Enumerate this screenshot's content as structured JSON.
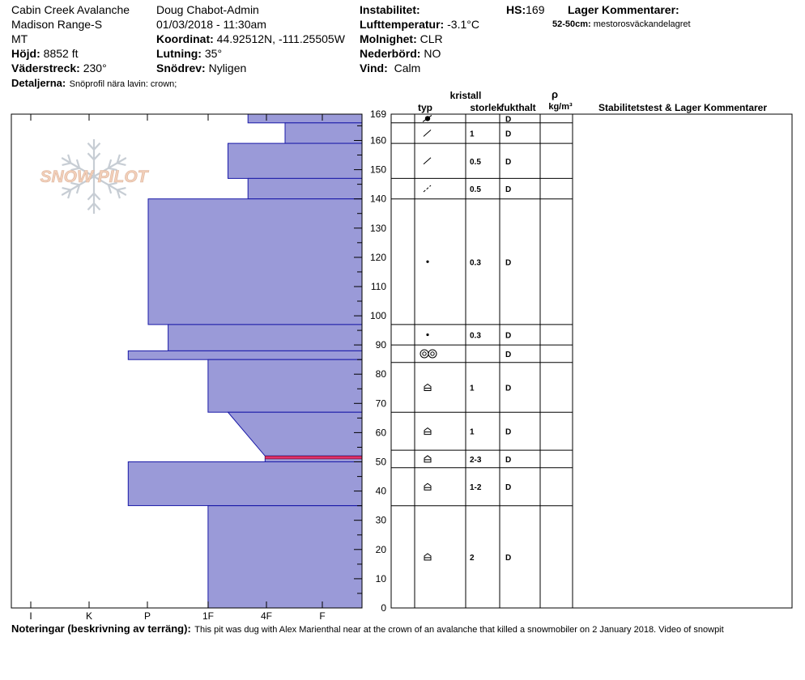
{
  "header": {
    "location": "Cabin Creek Avalanche",
    "range": "Madison Range-S",
    "state": "MT",
    "elevation_label": "Höjd:",
    "elevation_value": "8852 ft",
    "aspect_label": "Väderstreck:",
    "aspect_value": "230°",
    "details_label": "Detaljerna:",
    "details_value": "Snöprofil nära lavin: crown;",
    "observer": "Doug Chabot-Admin",
    "datetime": "01/03/2018 - 11:30am",
    "coord_label": "Koordinat:",
    "coord_value": "44.92512N, -111.25505W",
    "slope_label": "Lutning:",
    "slope_value": "35°",
    "drift_label": "Snödrev:",
    "drift_value": "Nyligen",
    "instability_label": "Instabilitet:",
    "airtemp_label": "Lufttemperatur:",
    "airtemp_value": "-3.1°C",
    "sky_label": "Molnighet:",
    "sky_value": "CLR",
    "precip_label": "Nederbörd:",
    "precip_value": "NO",
    "wind_label": "Vind:",
    "wind_value": "Calm",
    "hs_label": "HS:",
    "hs_value": "169",
    "layer_comments_label": "Lager Kommentarer:",
    "layer_comment_range": "52-50cm:",
    "layer_comment_text": "mestorosväckandelagret"
  },
  "watermark": "SNOW PILOT",
  "table_headers": {
    "crystal": "kristall",
    "type": "typ",
    "size": "storlek",
    "moisture": "fukthalt",
    "rho": "ρ",
    "density_unit": "kg/m³",
    "stability": "Stabilitetstest & Lager Kommentarer"
  },
  "notes_label": "Noteringar (beskrivning av terräng):",
  "notes_text": "This pit was dug with Alex Marienthal near at the crown of an avalanche that killed a snowmobiler on 2 January 2018. Video of snowpit",
  "chart_data": {
    "type": "bar",
    "title": "",
    "x_axis": {
      "tick_labels": [
        "I",
        "K",
        "P",
        "1F",
        "4F",
        "F"
      ],
      "scale_max": 6
    },
    "y_axis": {
      "range": [
        0,
        169
      ],
      "ticks": [
        0,
        10,
        20,
        30,
        40,
        50,
        60,
        70,
        80,
        90,
        100,
        110,
        120,
        130,
        140,
        150,
        160,
        169
      ]
    },
    "hardness_profile": [
      {
        "top": 169,
        "bottom": 166,
        "hardness": 2.0
      },
      {
        "top": 166,
        "bottom": 159,
        "hardness": 1.35
      },
      {
        "top": 159,
        "bottom": 147,
        "hardness": 2.35
      },
      {
        "top": 147,
        "bottom": 140,
        "hardness": 2.0
      },
      {
        "top": 140,
        "bottom": 97,
        "hardness": 3.75
      },
      {
        "top": 97,
        "bottom": 88,
        "hardness": 3.4
      },
      {
        "top": 88,
        "bottom": 85,
        "hardness": 4.1
      },
      {
        "top": 85,
        "bottom": 67,
        "hardness": 2.7
      },
      {
        "top": 67,
        "bottom": 52,
        "hardness_top": 2.35,
        "hardness_bottom": 1.7
      },
      {
        "top": 52,
        "bottom": 50,
        "hardness": 1.7
      },
      {
        "top": 50,
        "bottom": 35,
        "hardness": 4.1
      },
      {
        "top": 35,
        "bottom": 0,
        "hardness": 2.7
      }
    ],
    "highlight_layer": {
      "top": 52,
      "bottom": 51,
      "color": "#e0306a"
    },
    "layers": [
      {
        "top": 169,
        "bottom": 166,
        "grain": "rounding-faceted",
        "size": "",
        "moisture": "D"
      },
      {
        "top": 166,
        "bottom": 159,
        "grain": "precipitation-particles",
        "size": "1",
        "moisture": "D"
      },
      {
        "top": 159,
        "bottom": 147,
        "grain": "precipitation-particles",
        "size": "0.5",
        "moisture": "D"
      },
      {
        "top": 147,
        "bottom": 140,
        "grain": "decomposing-fragments",
        "size": "0.5",
        "moisture": "D"
      },
      {
        "top": 140,
        "bottom": 97,
        "grain": "rounded-grains",
        "size": "0.3",
        "moisture": "D"
      },
      {
        "top": 97,
        "bottom": 90,
        "grain": "rounded-grains",
        "size": "0.3",
        "moisture": "D"
      },
      {
        "top": 90,
        "bottom": 84,
        "grain": "melt-forms",
        "size": "",
        "moisture": "D"
      },
      {
        "top": 84,
        "bottom": 67,
        "grain": "depth-hoar",
        "size": "1",
        "moisture": "D"
      },
      {
        "top": 67,
        "bottom": 54,
        "grain": "depth-hoar",
        "size": "1",
        "moisture": "D"
      },
      {
        "top": 54,
        "bottom": 48,
        "grain": "depth-hoar",
        "size": "2-3",
        "moisture": "D"
      },
      {
        "top": 48,
        "bottom": 35,
        "grain": "depth-hoar",
        "size": "1-2",
        "moisture": "D"
      },
      {
        "top": 35,
        "bottom": 0,
        "grain": "depth-hoar",
        "size": "2",
        "moisture": "D"
      }
    ],
    "colors": {
      "bar_fill": "#9a9ad8",
      "bar_stroke": "#1a1aa8"
    }
  }
}
